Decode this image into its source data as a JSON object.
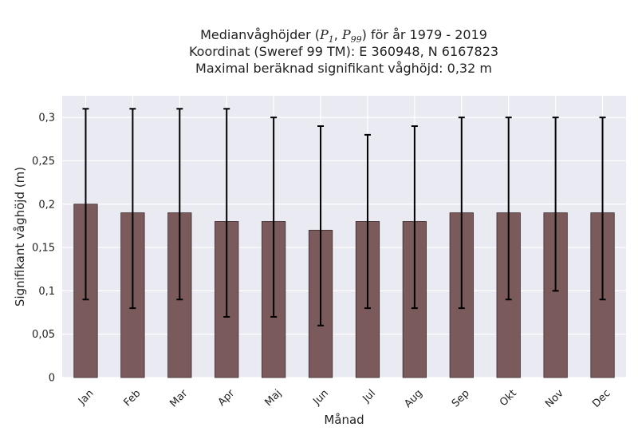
{
  "chart_data": {
    "type": "bar",
    "title_lines": {
      "line1_prefix": "Medianvåghöjder (",
      "p_symbol": "P",
      "sub1": "1",
      "sub2": "99",
      "line1_suffix": ") för år 1979 - 2019",
      "line2": "Koordinat (Sweref 99 TM): E 360948, N 6167823",
      "line3": "Maximal beräknad signifikant våghöjd: 0,32 m"
    },
    "xlabel": "Månad",
    "ylabel": "Signifikant våghöjd (m)",
    "categories": [
      "Jan",
      "Feb",
      "Mar",
      "Apr",
      "Maj",
      "Jun",
      "Jul",
      "Aug",
      "Sep",
      "Okt",
      "Nov",
      "Dec"
    ],
    "values": [
      0.2,
      0.19,
      0.19,
      0.18,
      0.18,
      0.17,
      0.18,
      0.18,
      0.19,
      0.19,
      0.19,
      0.19
    ],
    "p1": [
      0.09,
      0.08,
      0.09,
      0.07,
      0.07,
      0.06,
      0.08,
      0.08,
      0.08,
      0.09,
      0.1,
      0.09
    ],
    "p99": [
      0.31,
      0.31,
      0.31,
      0.31,
      0.3,
      0.29,
      0.28,
      0.29,
      0.3,
      0.3,
      0.3,
      0.3
    ],
    "ylim": [
      0,
      0.325
    ],
    "yticks": [
      0,
      0.05,
      0.1,
      0.15,
      0.2,
      0.25,
      0.3
    ],
    "ytick_labels": [
      "0",
      "0,05",
      "0,1",
      "0,15",
      "0,2",
      "0,25",
      "0,3"
    ],
    "grid": true,
    "bar_color": "#7a5a5a",
    "bar_edge_color": "#3d2b2b",
    "errorbar_color": "#000000",
    "plot_background": "#eaeaf2",
    "grid_color": "#ffffff"
  }
}
